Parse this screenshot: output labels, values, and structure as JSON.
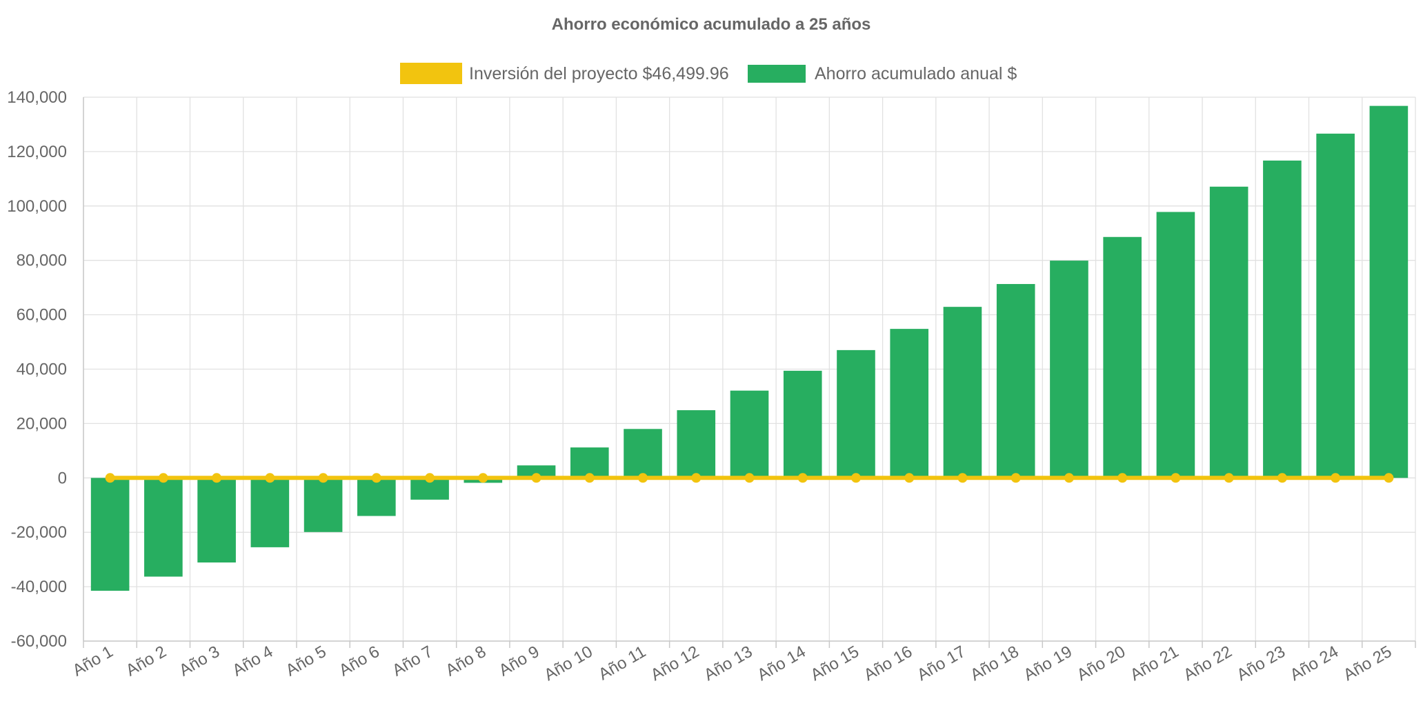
{
  "colors": {
    "investment": "#f2c40f",
    "savings": "#27ae60",
    "text": "#666666",
    "grid": "#e1e1e1"
  },
  "chart_data": {
    "type": "bar",
    "title": "Ahorro económico acumulado a 25 años",
    "legend_position": "top-center",
    "grid": true,
    "xlabel": "",
    "ylabel": "",
    "ylim": [
      -60000,
      140000
    ],
    "yticks": [
      140000,
      120000,
      100000,
      80000,
      60000,
      40000,
      20000,
      0,
      -20000,
      -40000,
      -60000
    ],
    "ytick_labels": [
      "140,000",
      "120,000",
      "100,000",
      "80,000",
      "60,000",
      "40,000",
      "20,000",
      "0",
      "-20,000",
      "-40,000",
      "-60,000"
    ],
    "categories": [
      "Año 1",
      "Año 2",
      "Año 3",
      "Año 4",
      "Año 5",
      "Año 6",
      "Año 7",
      "Año 8",
      "Año 9",
      "Año 10",
      "Año 11",
      "Año 12",
      "Año 13",
      "Año 14",
      "Año 15",
      "Año 16",
      "Año 17",
      "Año 18",
      "Año 19",
      "Año 20",
      "Año 21",
      "Año 22",
      "Año 23",
      "Año 24",
      "Año 25"
    ],
    "series": [
      {
        "name": "Inversión del proyecto $46,499.96",
        "type": "line",
        "color": "#f2c40f",
        "values": [
          0,
          0,
          0,
          0,
          0,
          0,
          0,
          0,
          0,
          0,
          0,
          0,
          0,
          0,
          0,
          0,
          0,
          0,
          0,
          0,
          0,
          0,
          0,
          0,
          0
        ]
      },
      {
        "name": "Ahorro acumulado anual $",
        "type": "bar",
        "color": "#27ae60",
        "values": [
          -41500,
          -36300,
          -31100,
          -25500,
          -19900,
          -14000,
          -8000,
          -1800,
          4600,
          11200,
          18000,
          24900,
          32100,
          39400,
          47000,
          54800,
          62900,
          71300,
          79900,
          88600,
          97800,
          107100,
          116700,
          126600,
          136800
        ]
      }
    ]
  }
}
